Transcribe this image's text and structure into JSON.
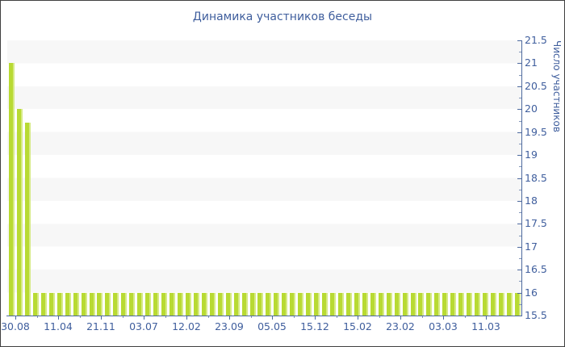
{
  "title": "Динамика участников беседы",
  "chart_data": {
    "type": "bar",
    "title": "Динамика участников беседы",
    "xlabel": "",
    "ylabel": "Число участников",
    "ylim": [
      15.5,
      21.5
    ],
    "y_tick_step": 0.5,
    "y_tick_labels": [
      "21.5",
      "21",
      "20.5",
      "20",
      "19.5",
      "19",
      "18.5",
      "18",
      "17.5",
      "17",
      "16.5",
      "16",
      "15.5"
    ],
    "x_tick_labels": [
      "30.08",
      "11.04",
      "21.11",
      "03.07",
      "12.02",
      "23.09",
      "05.05",
      "15.12",
      "15.02",
      "23.02",
      "03.03",
      "11.03"
    ],
    "values": [
      21,
      20,
      19.7,
      16,
      16,
      16,
      16,
      16,
      16,
      16,
      16,
      16,
      16,
      16,
      16,
      16,
      16,
      16,
      16,
      16,
      16,
      16,
      16,
      16,
      16,
      16,
      16,
      16,
      16,
      16,
      16,
      16,
      16,
      16,
      16,
      16,
      16,
      16,
      16,
      16,
      16,
      16,
      16,
      16,
      16,
      16,
      16,
      16,
      16,
      16,
      16,
      16,
      16,
      16,
      16,
      16,
      16,
      16,
      16,
      16,
      16,
      16,
      16,
      16
    ],
    "legend_position": "none",
    "grid": "alternating horizontal bands every 0.5",
    "colors": {
      "bar": "#b8da33",
      "bar_edge": "#d6ea85",
      "stripe": "#f7f7f7",
      "axis": "#4e6a9e",
      "text": "#3f5e9d"
    }
  }
}
